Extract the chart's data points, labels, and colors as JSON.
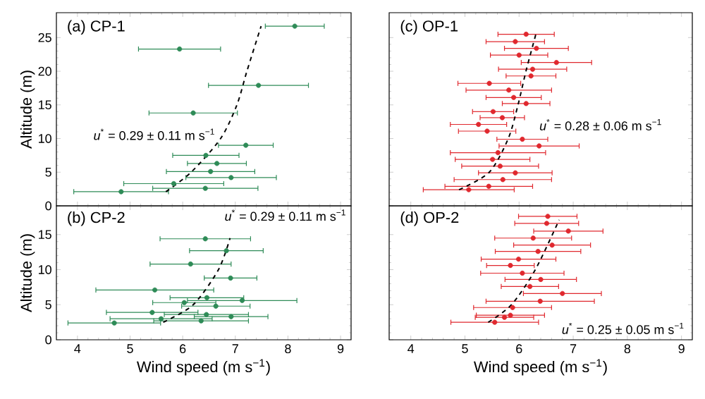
{
  "chart_data": [
    {
      "type": "scatter",
      "title": "(a) CP-1",
      "ylabel": "Altitude (m)",
      "xlim": [
        3.6,
        9.2
      ],
      "ylim": [
        0,
        28.7
      ],
      "xticks": [
        4,
        5,
        6,
        7,
        8,
        9
      ],
      "yticks": [
        0,
        5,
        10,
        15,
        20,
        25
      ],
      "tick_labels": "y",
      "annotations": [
        "*u*$^{*}$ = 0.29 ± 0.11 m s$^{−1}$"
      ],
      "series": [
        {
          "type": "scatter",
          "marker": "circle",
          "color": "#2e8b57",
          "x": [
            8.13,
            5.94,
            7.44,
            6.2,
            7.2,
            6.44,
            6.65,
            6.53,
            6.92,
            5.83,
            6.43,
            4.83
          ],
          "values": [
            26.7,
            23.3,
            17.9,
            13.8,
            9.0,
            7.5,
            6.3,
            5.1,
            4.2,
            3.3,
            2.6,
            2.1
          ],
          "xerrors": [
            0.56,
            0.78,
            0.95,
            0.84,
            0.52,
            0.63,
            0.56,
            0.84,
            0.86,
            0.95,
            1.0,
            0.9
          ]
        },
        {
          "type": "line",
          "marker": "none",
          "line_style": "dashed",
          "color": "#000000",
          "x": [
            5.68,
            6.16,
            6.72,
            7.03,
            7.22,
            7.49
          ],
          "values": [
            2.1,
            5,
            10,
            15,
            20,
            26.7
          ]
        }
      ]
    },
    {
      "type": "scatter",
      "title": "(c) OP-1",
      "xlim": [
        3.6,
        9.2
      ],
      "ylim": [
        0,
        28.7
      ],
      "xticks": [
        4,
        5,
        6,
        7,
        8,
        9
      ],
      "yticks": [
        0,
        5,
        10,
        15,
        20,
        25
      ],
      "tick_labels": false,
      "annotations": [
        "*u*$^{*}$ = 0.28 ± 0.06 m s$^{−1}$"
      ],
      "series": [
        {
          "type": "scatter",
          "marker": "circle",
          "color": "#e0282e",
          "x": [
            6.13,
            5.93,
            6.32,
            6.0,
            6.69,
            6.25,
            6.22,
            5.45,
            5.81,
            5.9,
            6.13,
            5.52,
            5.69,
            5.25,
            5.41,
            6.06,
            6.37,
            5.61,
            5.51,
            5.65,
            5.93,
            5.7,
            5.44,
            5.07
          ],
          "values": [
            25.5,
            24.4,
            23.4,
            22.4,
            21.3,
            20.3,
            19.3,
            18.2,
            17.2,
            16.1,
            15.2,
            14.0,
            13.1,
            12.1,
            11.1,
            9.9,
            8.9,
            7.9,
            6.9,
            5.9,
            4.9,
            3.9,
            2.9,
            2.4
          ],
          "xerrors": [
            0.52,
            0.54,
            0.59,
            0.53,
            0.65,
            0.63,
            0.46,
            0.58,
            0.79,
            0.51,
            0.44,
            0.38,
            0.41,
            0.52,
            0.53,
            0.47,
            0.74,
            0.88,
            0.69,
            0.71,
            0.68,
            0.9,
            0.81,
            0.84
          ]
        },
        {
          "type": "line",
          "marker": "none",
          "line_style": "dashed",
          "color": "#000000",
          "x": [
            4.89,
            5.45,
            5.8,
            5.98,
            6.13,
            6.31
          ],
          "values": [
            2.4,
            5,
            10,
            15,
            20.1,
            25.5
          ]
        }
      ]
    },
    {
      "type": "scatter",
      "title": "(b) CP-2",
      "xlabel": "Wind speed (m s$^{−1}$)",
      "ylabel": "Altitude (m)",
      "xlim": [
        3.6,
        9.2
      ],
      "ylim": [
        0,
        19.1
      ],
      "xticks": [
        4,
        5,
        6,
        7,
        8,
        9
      ],
      "yticks": [
        0,
        5,
        10,
        15
      ],
      "annotations": [
        "*u*$^{*}$ = 0.29 ± 0.11 m s$^{−1}$"
      ],
      "series": [
        {
          "type": "scatter",
          "marker": "circle",
          "color": "#2e8b57",
          "x": [
            6.43,
            6.83,
            6.15,
            6.91,
            5.47,
            7.13,
            6.03,
            6.46,
            6.63,
            5.42,
            6.45,
            5.59,
            6.92,
            6.35,
            4.7
          ],
          "values": [
            14.4,
            12.7,
            10.8,
            8.8,
            7.1,
            5.6,
            5.3,
            6.0,
            4.8,
            3.9,
            3.6,
            3.0,
            3.3,
            2.7,
            2.4
          ],
          "xerrors": [
            0.86,
            0.7,
            0.77,
            0.5,
            1.12,
            1.04,
            0.6,
            0.7,
            0.65,
            0.87,
            0.8,
            0.97,
            0.7,
            0.9,
            0.88
          ]
        },
        {
          "type": "line",
          "marker": "none",
          "line_style": "dashed",
          "color": "#000000",
          "x": [
            5.63,
            6.2,
            6.68,
            6.9
          ],
          "values": [
            2.5,
            5,
            10,
            14.5
          ]
        }
      ]
    },
    {
      "type": "scatter",
      "title": "(d) OP-2",
      "xlabel": "Wind speed (m s$^{−1}$)",
      "xlim": [
        3.6,
        9.2
      ],
      "ylim": [
        0,
        19.1
      ],
      "xticks": [
        4,
        5,
        6,
        7,
        8,
        9
      ],
      "yticks": [
        0,
        5,
        10,
        15
      ],
      "tick_labels": "x",
      "annotations": [
        "*u*$^{*}$ = 0.25 ± 0.05 m s$^{−1}$"
      ],
      "series": [
        {
          "type": "scatter",
          "marker": "circle",
          "color": "#e0282e",
          "x": [
            6.53,
            6.51,
            6.91,
            6.26,
            6.61,
            6.35,
            5.99,
            5.84,
            6.06,
            6.4,
            6.2,
            6.8,
            6.39,
            5.88,
            5.84,
            5.73,
            5.55
          ],
          "values": [
            17.6,
            16.6,
            15.5,
            14.5,
            13.5,
            12.6,
            11.5,
            10.6,
            9.5,
            8.6,
            7.6,
            6.6,
            5.5,
            4.6,
            3.5,
            3.2,
            2.5
          ],
          "xerrors": [
            0.54,
            0.59,
            0.64,
            0.71,
            0.71,
            0.79,
            0.69,
            0.44,
            0.77,
            0.66,
            0.53,
            0.72,
            1.0,
            0.72,
            0.63,
            0.54,
            0.81
          ]
        },
        {
          "type": "line",
          "marker": "none",
          "line_style": "dashed",
          "color": "#000000",
          "x": [
            5.43,
            5.86,
            6.3,
            6.74
          ],
          "values": [
            2.5,
            5,
            10,
            17.1
          ]
        }
      ]
    }
  ]
}
